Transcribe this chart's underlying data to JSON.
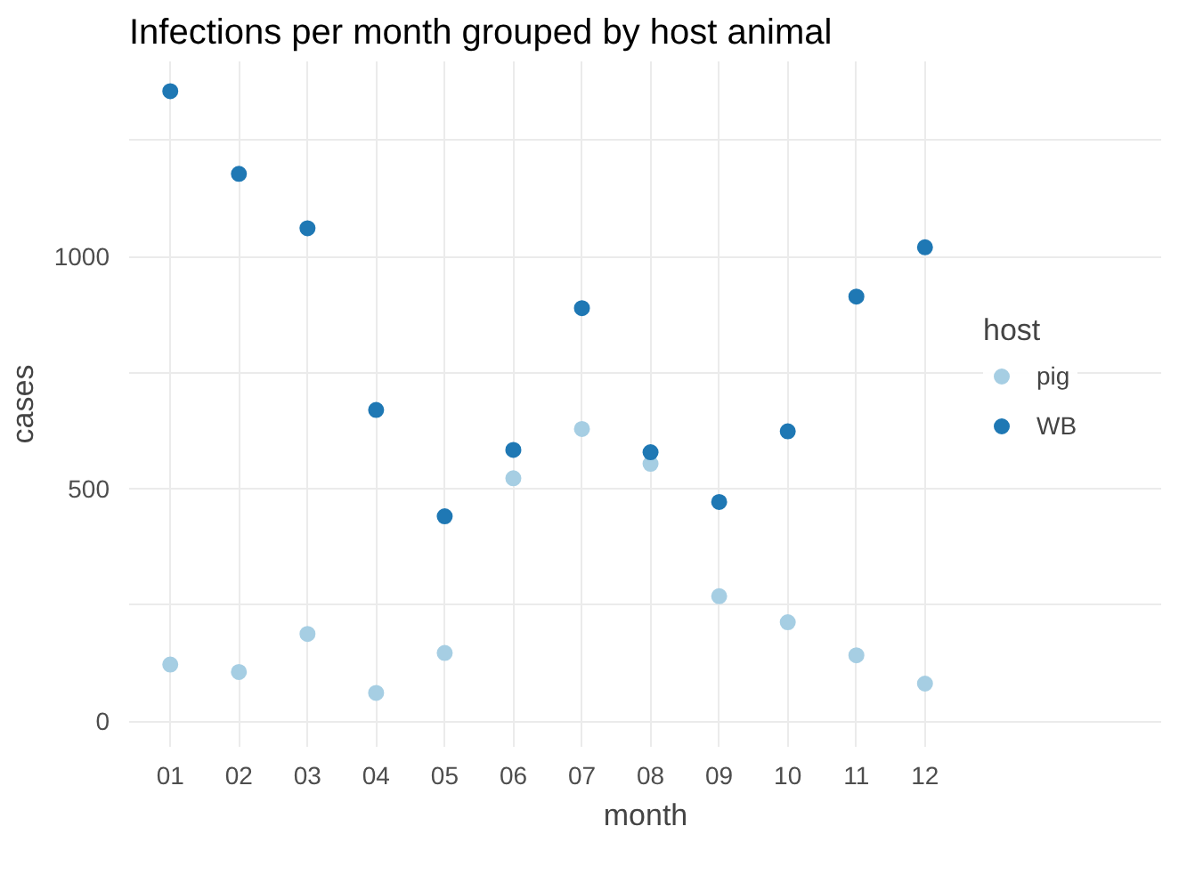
{
  "chart_data": {
    "type": "scatter",
    "title": "Infections per month grouped by host animal",
    "xlabel": "month",
    "ylabel": "cases",
    "legend_title": "host",
    "categories": [
      "01",
      "02",
      "03",
      "04",
      "05",
      "06",
      "07",
      "08",
      "09",
      "10",
      "11",
      "12"
    ],
    "series": [
      {
        "name": "pig",
        "color": "#a6cee3",
        "values": [
          122,
          106,
          188,
          61,
          147,
          523,
          629,
          554,
          269,
          213,
          142,
          81
        ]
      },
      {
        "name": "WB",
        "color": "#1f78b4",
        "values": [
          1356,
          1178,
          1061,
          670,
          441,
          584,
          889,
          579,
          472,
          624,
          914,
          1020
        ]
      }
    ],
    "ylim": [
      -55,
      1420
    ],
    "yticks": [
      0,
      {
        "value": 250,
        "label": null
      },
      500,
      {
        "value": 750,
        "label": null
      },
      1000,
      {
        "value": 1250,
        "label": null
      }
    ],
    "grid": true,
    "legend": "right",
    "marker": "circle"
  }
}
